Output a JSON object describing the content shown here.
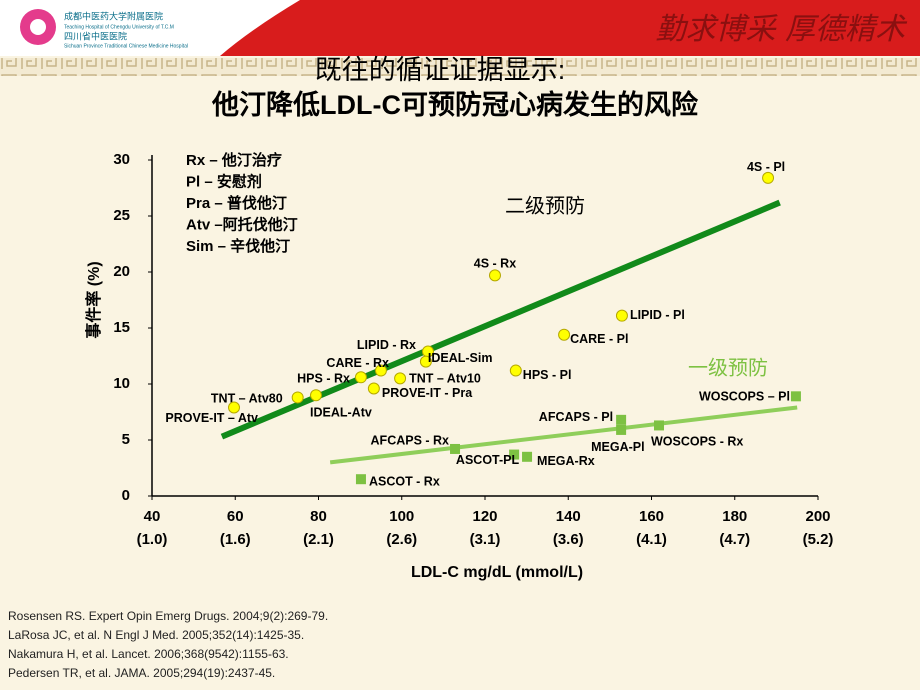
{
  "header": {
    "logo_lines": [
      "成都中医药大学附属医院",
      "Teaching Hospital of Chengdu University of T.C.M",
      "四川省中医医院",
      "Sichuan Province Traditional Chinese Medicine Hospital"
    ],
    "motto": "勤求博采  厚德精术"
  },
  "chart_data": {
    "type": "scatter",
    "title": [
      "既往的循证证据显示:",
      "他汀降低LDL-C可预防冠心病发生的风险"
    ],
    "x_label": "LDL-C mg/dL (mmol/L)",
    "y_label": "事件率 (%)",
    "abbreviations": [
      "Rx – 他汀治疗",
      "Pl – 安慰剂",
      "Pra – 普伐他汀",
      "Atv –阿托伐他汀",
      "Sim – 辛伐他汀"
    ],
    "xlim": [
      40,
      200
    ],
    "ylim": [
      0,
      30
    ],
    "xticks": [
      40,
      60,
      80,
      100,
      120,
      140,
      160,
      180,
      200
    ],
    "xticks_mmol": [
      "(1.0)",
      "(1.6)",
      "(2.1)",
      "(2.6)",
      "(3.1)",
      "(3.6)",
      "(4.1)",
      "(4.7)",
      "(5.2)"
    ],
    "yticks": [
      0,
      5,
      10,
      15,
      20,
      25,
      30
    ],
    "series": [
      {
        "name": "二级预防",
        "color": "#ffff00",
        "marker": "circle",
        "line_color": "#118a1a",
        "labels": [
          "4S - Pl",
          "4S - Rx",
          "LIPID - Pl",
          "CARE  - Pl",
          "HPS - Pl",
          "LIPID - Rx",
          "IDEAL-Sim",
          "CARE - Rx",
          "HPS - Rx",
          "TNT – Atv10",
          "PROVE-IT - Pra",
          "TNT – Atv80",
          "IDEAL-Atv",
          "PROVE-IT – Atv"
        ],
        "x": [
          188,
          122.4,
          152.9,
          139,
          127.4,
          106.3,
          105.8,
          95,
          90.2,
          99.6,
          93.3,
          75,
          79.4,
          59.7
        ],
        "values": [
          28.4,
          19.7,
          16.1,
          14.4,
          11.2,
          12.9,
          12.0,
          11.2,
          10.6,
          10.5,
          9.6,
          8.8,
          9.0,
          7.9
        ],
        "trend": {
          "x": [
            56.8,
            190.8
          ],
          "values": [
            5.3,
            26.2
          ]
        }
      },
      {
        "name": "一级预防",
        "color": "#7dc142",
        "marker": "square",
        "line_color": "#8fce5a",
        "labels": [
          "WOSCOPS – Pl",
          "AFCAPS  - Pl",
          "MEGA-Pl",
          "WOSCOPS - Rx",
          "AFCAPS  - Rx",
          "ASCOT-PL",
          "MEGA-Rx",
          "ASCOT - Rx"
        ],
        "x": [
          194.7,
          152.7,
          152.7,
          161.8,
          112.8,
          127,
          130.1,
          90.2
        ],
        "values": [
          8.9,
          6.8,
          5.9,
          6.3,
          4.2,
          3.7,
          3.5,
          1.5
        ],
        "trend": {
          "x": [
            82.8,
            195
          ],
          "values": [
            3.0,
            7.9
          ]
        }
      }
    ]
  },
  "references": [
    "Rosensen RS. Expert Opin Emerg Drugs. 2004;9(2):269-79.",
    "LaRosa JC, et al. N Engl J Med. 2005;352(14):1425-35.",
    "Nakamura  H, et al. Lancet. 2006;368(9542):1155-63.",
    "Pedersen TR, et al. JAMA.  2005;294(19):2437-45."
  ]
}
